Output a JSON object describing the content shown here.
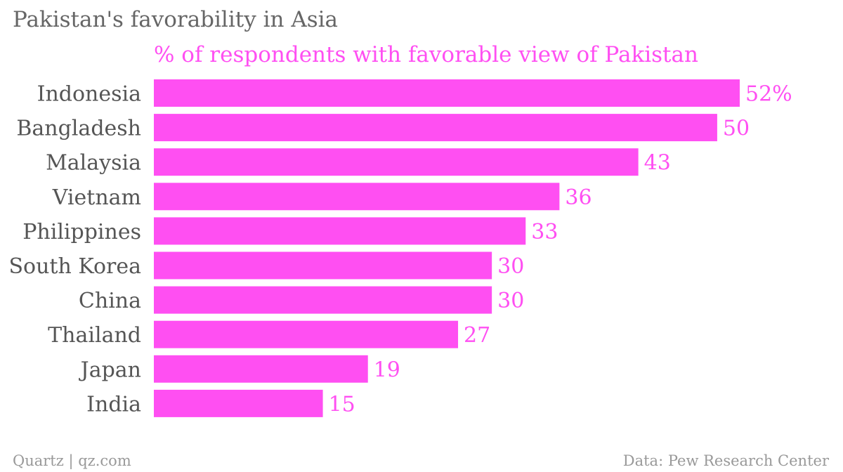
{
  "header": {
    "title": "Pakistan's favorability in Asia"
  },
  "footer": {
    "credit": "Quartz | qz.com",
    "source": "Data: Pew Research Center"
  },
  "colors": {
    "bar": "#ff4ff2",
    "label": "#555555",
    "value": "#ff4ff2"
  },
  "chart_data": {
    "type": "bar",
    "orientation": "horizontal",
    "subtitle": "% of respondents with favorable view of Pakistan",
    "categories": [
      "Indonesia",
      "Bangladesh",
      "Malaysia",
      "Vietnam",
      "Philippines",
      "South Korea",
      "China",
      "Thailand",
      "Japan",
      "India"
    ],
    "values": [
      52,
      50,
      43,
      36,
      33,
      30,
      30,
      27,
      19,
      15
    ],
    "value_labels": [
      "52%",
      "50",
      "43",
      "36",
      "33",
      "30",
      "30",
      "27",
      "19",
      "15"
    ],
    "xlim": [
      0,
      52
    ],
    "grid": false,
    "legend": "none"
  }
}
